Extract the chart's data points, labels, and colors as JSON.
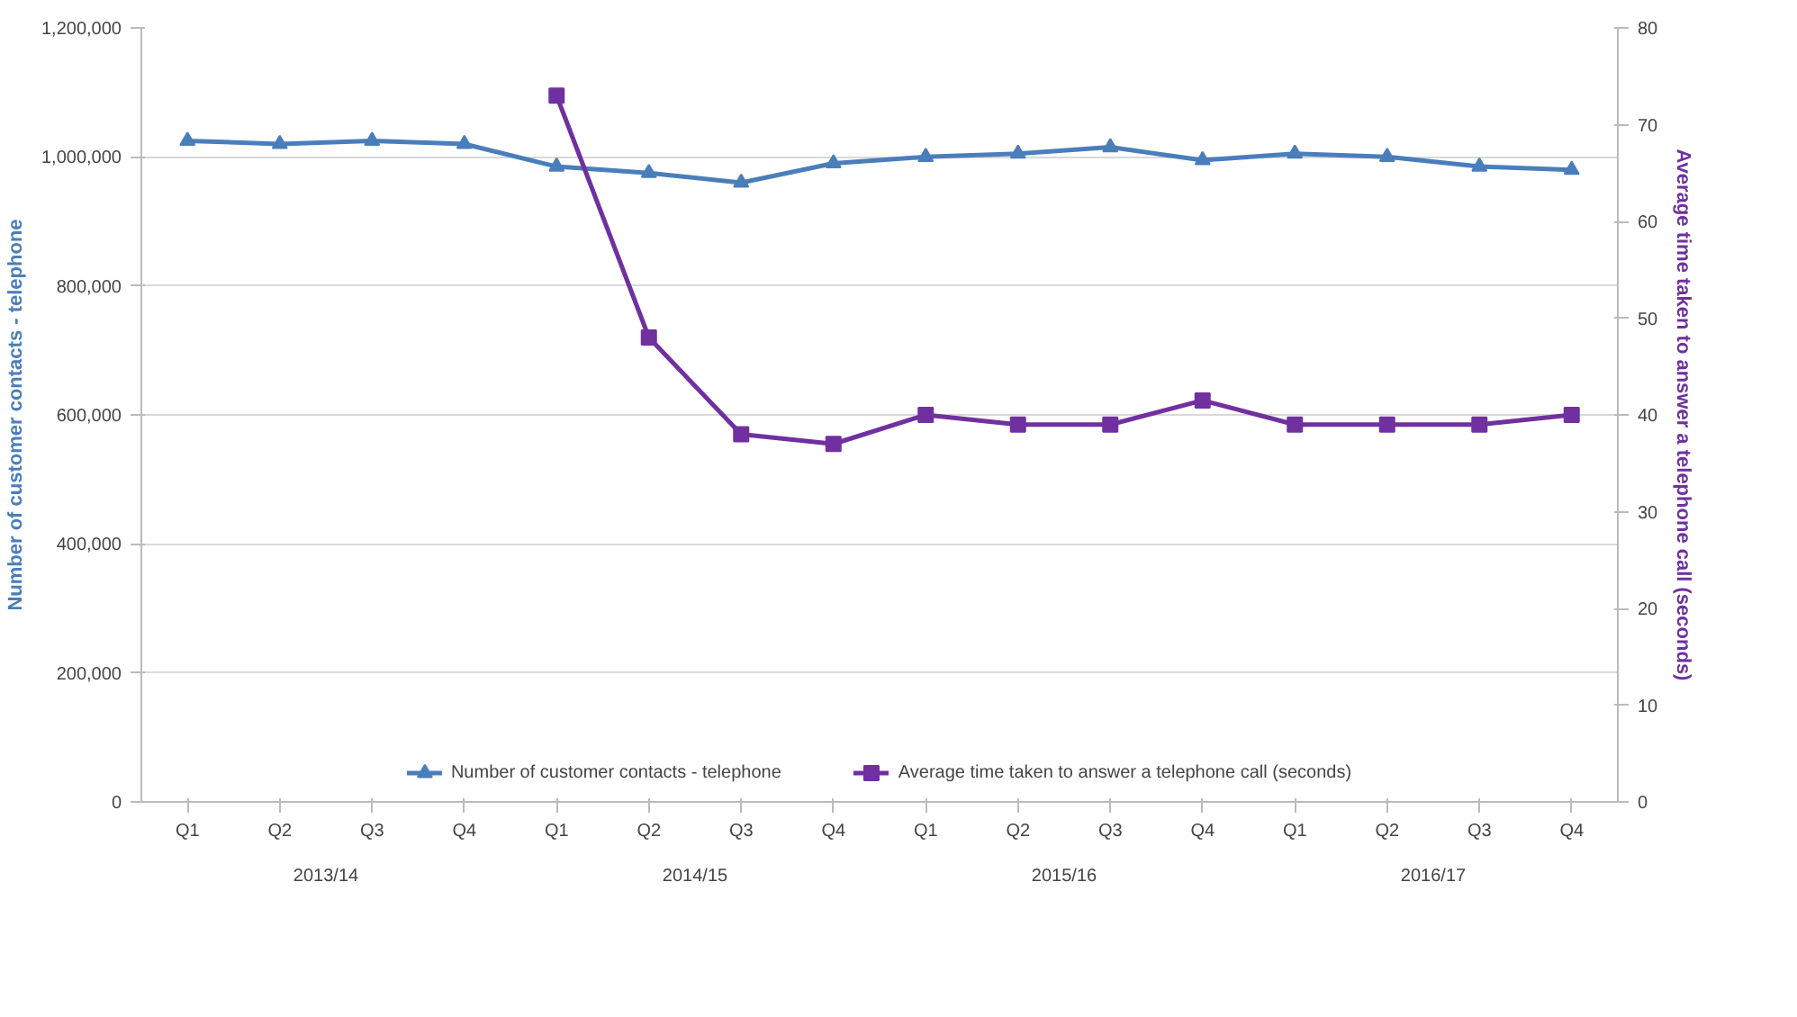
{
  "chart_data": {
    "type": "line",
    "ylabel": "Number of customer contacts - telephone",
    "y2label": "Average time taken to answer a telephone call (seconds)",
    "categories": [
      "Q1",
      "Q2",
      "Q3",
      "Q4",
      "Q1",
      "Q2",
      "Q3",
      "Q4",
      "Q1",
      "Q2",
      "Q3",
      "Q4",
      "Q1",
      "Q2",
      "Q3",
      "Q4"
    ],
    "annotations": [
      "2013/14",
      "2014/15",
      "2015/16",
      "2016/17"
    ],
    "series": [
      {
        "name": "Number of customer contacts - telephone",
        "color": "#4a7ebb",
        "marker": "triangle",
        "values": [
          1025000,
          1020000,
          1025000,
          1020000,
          985000,
          975000,
          960000,
          990000,
          1000000,
          1005000,
          1015000,
          995000,
          1005000,
          1000000,
          985000,
          980000
        ]
      },
      {
        "name": "Average time taken to answer a telephone call (seconds)",
        "color": "#7030a0",
        "marker": "square",
        "axis": "y2",
        "values": [
          null,
          null,
          null,
          null,
          73,
          48,
          38,
          37,
          40,
          39,
          39,
          41.5,
          39,
          39,
          39,
          40
        ]
      }
    ],
    "ylim": [
      0,
      1200000
    ],
    "yticks": [
      {
        "value": 0,
        "label": "0"
      },
      {
        "value": 200000,
        "label": "200,000"
      },
      {
        "value": 400000,
        "label": "400,000"
      },
      {
        "value": 600000,
        "label": "600,000"
      },
      {
        "value": 800000,
        "label": "800,000"
      },
      {
        "value": 1000000,
        "label": "1,000,000"
      },
      {
        "value": 1200000,
        "label": "1,200,000"
      }
    ],
    "y2lim": [
      0,
      80
    ],
    "y2ticks": [
      0,
      10,
      20,
      30,
      40,
      50,
      60,
      70,
      80
    ],
    "grid": "y",
    "legend": "bottom",
    "line_style": "solid"
  }
}
